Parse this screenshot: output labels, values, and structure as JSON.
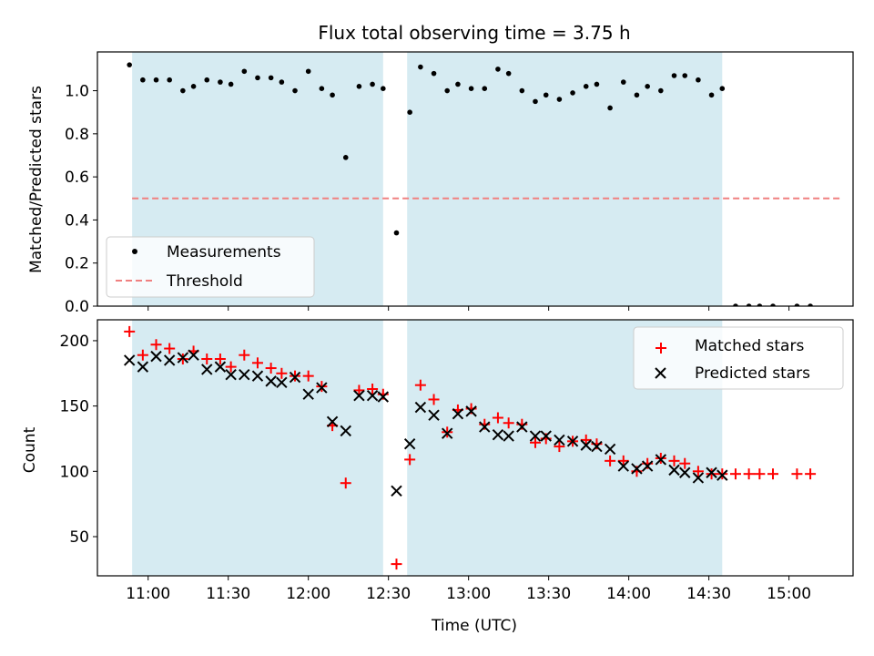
{
  "title": "Flux total observing time = 3.75 h",
  "xlabel": "Time (UTC)",
  "x_ticks": [
    "11:00",
    "11:30",
    "12:00",
    "12:30",
    "13:00",
    "13:30",
    "14:00",
    "14:30",
    "15:00"
  ],
  "colors": {
    "shade": "#add8e6",
    "measurement": "#000000",
    "threshold": "#f08080",
    "matched": "#ff0000",
    "predicted": "#000000"
  },
  "chart_data": [
    {
      "type": "scatter",
      "ylabel": "Matched/Predicted stars",
      "xlim": [
        "10:41",
        "15:24"
      ],
      "ylim": [
        0,
        1.18
      ],
      "y_ticks": [
        "0.0",
        "0.2",
        "0.4",
        "0.6",
        "0.8",
        "1.0"
      ],
      "y_tick_values": [
        0,
        0.2,
        0.4,
        0.6,
        0.8,
        1.0
      ],
      "shaded_spans": [
        [
          "10:54",
          "12:28"
        ],
        [
          "12:37",
          "14:35"
        ]
      ],
      "threshold": {
        "name": "Threshold",
        "value": 0.5,
        "x_range": [
          "10:54",
          "15:20"
        ]
      },
      "legend": {
        "placement": "lower-left",
        "entries": [
          "Measurements",
          "Threshold"
        ]
      },
      "series": [
        {
          "name": "Measurements",
          "points": [
            [
              "10:53",
              1.12
            ],
            [
              "10:58",
              1.05
            ],
            [
              "11:03",
              1.05
            ],
            [
              "11:08",
              1.05
            ],
            [
              "11:13",
              1.0
            ],
            [
              "11:17",
              1.02
            ],
            [
              "11:22",
              1.05
            ],
            [
              "11:27",
              1.04
            ],
            [
              "11:31",
              1.03
            ],
            [
              "11:36",
              1.09
            ],
            [
              "11:41",
              1.06
            ],
            [
              "11:46",
              1.06
            ],
            [
              "11:50",
              1.04
            ],
            [
              "11:55",
              1.0
            ],
            [
              "12:00",
              1.09
            ],
            [
              "12:05",
              1.01
            ],
            [
              "12:09",
              0.98
            ],
            [
              "12:14",
              0.69
            ],
            [
              "12:19",
              1.02
            ],
            [
              "12:24",
              1.03
            ],
            [
              "12:28",
              1.01
            ],
            [
              "12:33",
              0.34
            ],
            [
              "12:38",
              0.9
            ],
            [
              "12:42",
              1.11
            ],
            [
              "12:47",
              1.08
            ],
            [
              "12:52",
              1.0
            ],
            [
              "12:56",
              1.03
            ],
            [
              "13:01",
              1.01
            ],
            [
              "13:06",
              1.01
            ],
            [
              "13:11",
              1.1
            ],
            [
              "13:15",
              1.08
            ],
            [
              "13:20",
              1.0
            ],
            [
              "13:25",
              0.95
            ],
            [
              "13:29",
              0.98
            ],
            [
              "13:34",
              0.96
            ],
            [
              "13:39",
              0.99
            ],
            [
              "13:44",
              1.02
            ],
            [
              "13:48",
              1.03
            ],
            [
              "13:53",
              0.92
            ],
            [
              "13:58",
              1.04
            ],
            [
              "14:03",
              0.98
            ],
            [
              "14:07",
              1.02
            ],
            [
              "14:12",
              1.0
            ],
            [
              "14:17",
              1.07
            ],
            [
              "14:21",
              1.07
            ],
            [
              "14:26",
              1.05
            ],
            [
              "14:31",
              0.98
            ],
            [
              "14:35",
              1.01
            ],
            [
              "14:40",
              0.0
            ],
            [
              "14:45",
              0.0
            ],
            [
              "14:49",
              0.0
            ],
            [
              "14:54",
              0.0
            ],
            [
              "15:03",
              0.0
            ],
            [
              "15:08",
              0.0
            ]
          ]
        }
      ]
    },
    {
      "type": "scatter",
      "ylabel": "Count",
      "xlim": [
        "10:41",
        "15:24"
      ],
      "ylim": [
        20,
        216
      ],
      "y_ticks": [
        "50",
        "100",
        "150",
        "200"
      ],
      "y_tick_values": [
        50,
        100,
        150,
        200
      ],
      "shaded_spans": [
        [
          "10:54",
          "12:28"
        ],
        [
          "12:37",
          "14:35"
        ]
      ],
      "legend": {
        "placement": "upper-right",
        "entries": [
          "Matched stars",
          "Predicted stars"
        ]
      },
      "series": [
        {
          "name": "Matched stars",
          "points": [
            [
              "10:53",
              207
            ],
            [
              "10:58",
              189
            ],
            [
              "11:03",
              197
            ],
            [
              "11:08",
              194
            ],
            [
              "11:13",
              186
            ],
            [
              "11:17",
              192
            ],
            [
              "11:22",
              186
            ],
            [
              "11:27",
              186
            ],
            [
              "11:31",
              180
            ],
            [
              "11:36",
              189
            ],
            [
              "11:41",
              183
            ],
            [
              "11:46",
              179
            ],
            [
              "11:50",
              175
            ],
            [
              "11:55",
              173
            ],
            [
              "12:00",
              173
            ],
            [
              "12:05",
              165
            ],
            [
              "12:09",
              135
            ],
            [
              "12:14",
              91
            ],
            [
              "12:19",
              162
            ],
            [
              "12:24",
              163
            ],
            [
              "12:28",
              159
            ],
            [
              "12:33",
              29
            ],
            [
              "12:38",
              109
            ],
            [
              "12:42",
              166
            ],
            [
              "12:47",
              155
            ],
            [
              "12:52",
              130
            ],
            [
              "12:56",
              147
            ],
            [
              "13:01",
              148
            ],
            [
              "13:06",
              136
            ],
            [
              "13:11",
              141
            ],
            [
              "13:15",
              137
            ],
            [
              "13:20",
              136
            ],
            [
              "13:25",
              122
            ],
            [
              "13:29",
              125
            ],
            [
              "13:34",
              119
            ],
            [
              "13:39",
              123
            ],
            [
              "13:44",
              124
            ],
            [
              "13:48",
              121
            ],
            [
              "13:53",
              108
            ],
            [
              "13:58",
              108
            ],
            [
              "14:03",
              100
            ],
            [
              "14:07",
              106
            ],
            [
              "14:12",
              110
            ],
            [
              "14:17",
              108
            ],
            [
              "14:21",
              106
            ],
            [
              "14:26",
              100
            ],
            [
              "14:31",
              98
            ],
            [
              "14:35",
              98
            ],
            [
              "14:40",
              98
            ],
            [
              "14:45",
              98
            ],
            [
              "14:49",
              98
            ],
            [
              "14:54",
              98
            ],
            [
              "15:03",
              98
            ],
            [
              "15:08",
              98
            ]
          ]
        },
        {
          "name": "Predicted stars",
          "points": [
            [
              "10:53",
              185
            ],
            [
              "10:58",
              180
            ],
            [
              "11:03",
              188
            ],
            [
              "11:08",
              185
            ],
            [
              "11:13",
              187
            ],
            [
              "11:17",
              189
            ],
            [
              "11:22",
              178
            ],
            [
              "11:27",
              180
            ],
            [
              "11:31",
              174
            ],
            [
              "11:36",
              174
            ],
            [
              "11:41",
              173
            ],
            [
              "11:46",
              169
            ],
            [
              "11:50",
              168
            ],
            [
              "11:55",
              172
            ],
            [
              "12:00",
              159
            ],
            [
              "12:05",
              164
            ],
            [
              "12:09",
              138
            ],
            [
              "12:14",
              131
            ],
            [
              "12:19",
              158
            ],
            [
              "12:24",
              158
            ],
            [
              "12:28",
              157
            ],
            [
              "12:33",
              85
            ],
            [
              "12:38",
              121
            ],
            [
              "12:42",
              149
            ],
            [
              "12:47",
              143
            ],
            [
              "12:52",
              129
            ],
            [
              "12:56",
              144
            ],
            [
              "13:01",
              146
            ],
            [
              "13:06",
              134
            ],
            [
              "13:11",
              128
            ],
            [
              "13:15",
              127
            ],
            [
              "13:20",
              134
            ],
            [
              "13:25",
              127
            ],
            [
              "13:29",
              127
            ],
            [
              "13:34",
              124
            ],
            [
              "13:39",
              123
            ],
            [
              "13:44",
              120
            ],
            [
              "13:48",
              119
            ],
            [
              "13:53",
              117
            ],
            [
              "13:58",
              104
            ],
            [
              "14:03",
              102
            ],
            [
              "14:07",
              104
            ],
            [
              "14:12",
              109
            ],
            [
              "14:17",
              101
            ],
            [
              "14:21",
              99
            ],
            [
              "14:26",
              95
            ],
            [
              "14:31",
              99
            ],
            [
              "14:35",
              97
            ]
          ]
        }
      ]
    }
  ]
}
